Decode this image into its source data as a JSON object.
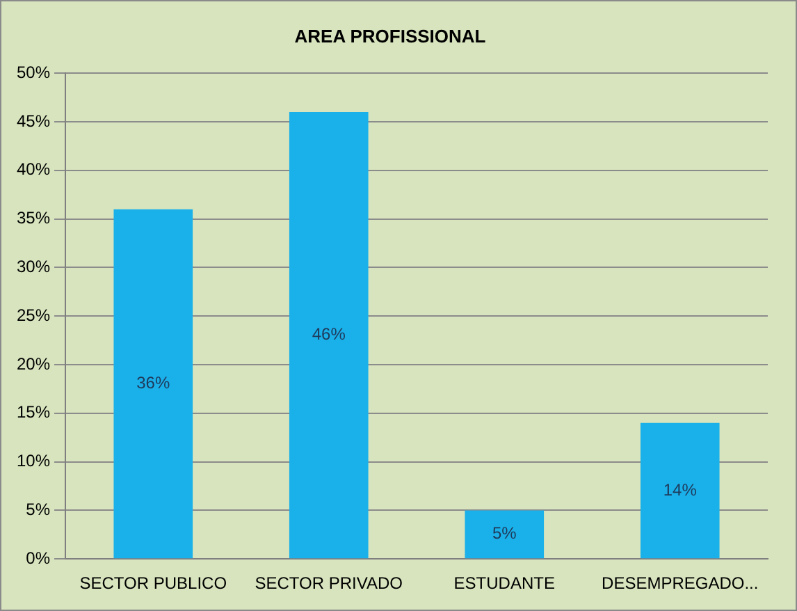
{
  "chart_data": {
    "type": "bar",
    "title": "AREA PROFISSIONAL",
    "categories": [
      "SECTOR PUBLICO",
      "SECTOR PRIVADO",
      "ESTUDANTE",
      "DESEMPREGADO..."
    ],
    "values": [
      36,
      46,
      5,
      14
    ],
    "value_labels": [
      "36%",
      "46%",
      "5%",
      "14%"
    ],
    "color": "#1ab0ea",
    "ylim": [
      0,
      50
    ],
    "yticks": [
      {
        "value": 0,
        "label": "0%"
      },
      {
        "value": 5,
        "label": "5%"
      },
      {
        "value": 10,
        "label": "10%"
      },
      {
        "value": 15,
        "label": "15%"
      },
      {
        "value": 20,
        "label": "20%"
      },
      {
        "value": 25,
        "label": "25%"
      },
      {
        "value": 30,
        "label": "30%"
      },
      {
        "value": 35,
        "label": "35%"
      },
      {
        "value": 40,
        "label": "40%"
      },
      {
        "value": 45,
        "label": "45%"
      },
      {
        "value": 50,
        "label": "50%"
      }
    ],
    "grid": "y",
    "legend": false
  }
}
